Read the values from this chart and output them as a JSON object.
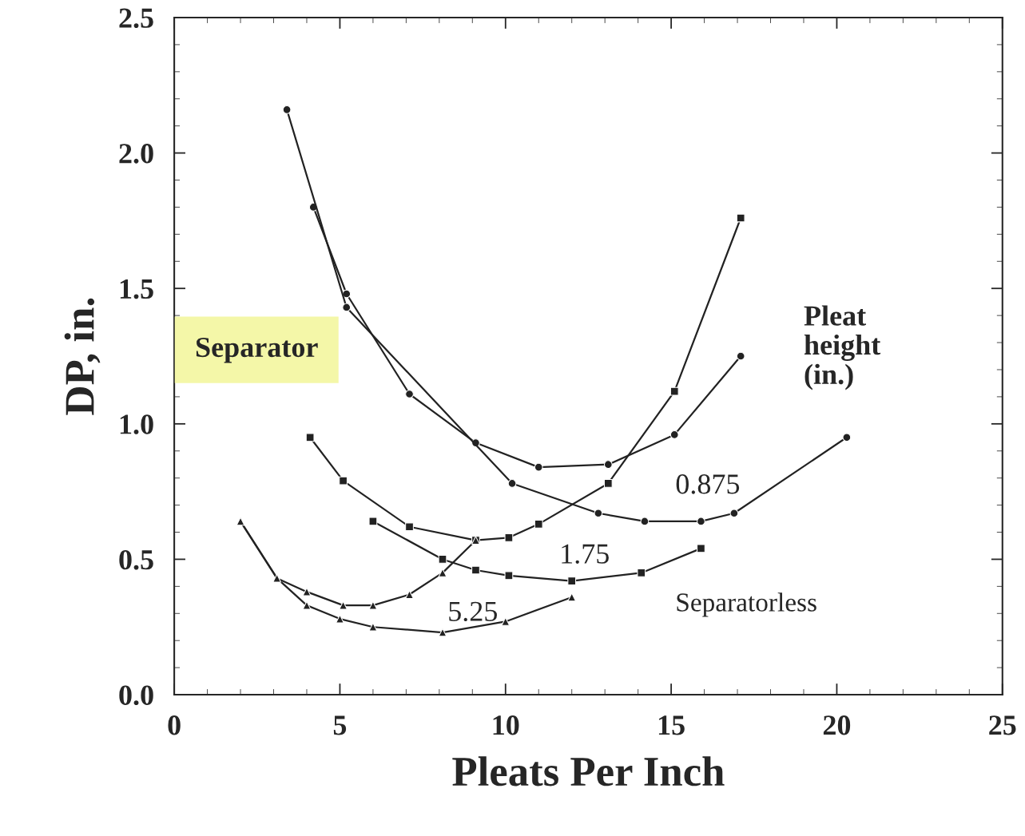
{
  "chart_data": {
    "type": "line",
    "xlabel": "Pleats Per Inch",
    "ylabel": "DP, in.",
    "xlim": [
      0,
      25
    ],
    "xticks": [
      0,
      5,
      10,
      15,
      20,
      25
    ],
    "ylim": [
      0,
      2.5
    ],
    "yticks": [
      {
        "value": 0,
        "label": "0.0"
      },
      {
        "value": 0.5,
        "label": "0.5"
      },
      {
        "value": 1,
        "label": "1.0"
      },
      {
        "value": 1.5,
        "label": "1.5"
      },
      {
        "value": 2,
        "label": "2.0"
      },
      {
        "value": 2.5,
        "label": "2.5"
      }
    ],
    "grid": false,
    "legend": false,
    "line_style": "solid",
    "series": [
      {
        "color": "#222222",
        "marker": "circle",
        "x": [
          4.2,
          5.2,
          7.1,
          9.1,
          11.0,
          13.1,
          15.1,
          17.1
        ],
        "values": [
          1.8,
          1.48,
          1.11,
          0.93,
          0.84,
          0.85,
          0.96,
          1.25
        ]
      },
      {
        "color": "#222222",
        "marker": "square",
        "x": [
          4.1,
          5.1,
          7.1,
          9.1,
          10.1,
          11.0,
          13.1,
          15.1,
          17.1
        ],
        "values": [
          0.95,
          0.79,
          0.62,
          0.57,
          0.58,
          0.63,
          0.78,
          1.12,
          1.76
        ]
      },
      {
        "color": "#222222",
        "marker": "triangle",
        "x": [
          2.0,
          3.1,
          4.0,
          5.1,
          6.0,
          7.1,
          8.1,
          9.1
        ],
        "values": [
          0.64,
          0.43,
          0.38,
          0.33,
          0.33,
          0.37,
          0.45,
          0.57
        ]
      },
      {
        "color": "#222222",
        "marker": "circle",
        "x": [
          3.4,
          5.2,
          10.2,
          12.8,
          14.2,
          15.9,
          16.9,
          20.3
        ],
        "values": [
          2.16,
          1.43,
          0.78,
          0.67,
          0.64,
          0.64,
          0.67,
          0.95
        ]
      },
      {
        "color": "#222222",
        "marker": "square",
        "x": [
          6.0,
          8.1,
          9.1,
          10.1,
          12.0,
          14.1,
          15.9
        ],
        "values": [
          0.64,
          0.5,
          0.46,
          0.44,
          0.42,
          0.45,
          0.54
        ]
      },
      {
        "color": "#222222",
        "marker": "triangle",
        "x": [
          2.0,
          3.1,
          4.0,
          5.0,
          6.0,
          8.1,
          10.0,
          12.0
        ],
        "values": [
          0.64,
          0.43,
          0.33,
          0.28,
          0.25,
          0.23,
          0.27,
          0.36
        ]
      }
    ],
    "annotations": [
      {
        "text": "Separator"
      },
      {
        "text": "Pleat\nheight\n(in.)"
      },
      "0.875",
      "1.75",
      "5.25",
      {
        "text": "Separatorless"
      }
    ]
  }
}
